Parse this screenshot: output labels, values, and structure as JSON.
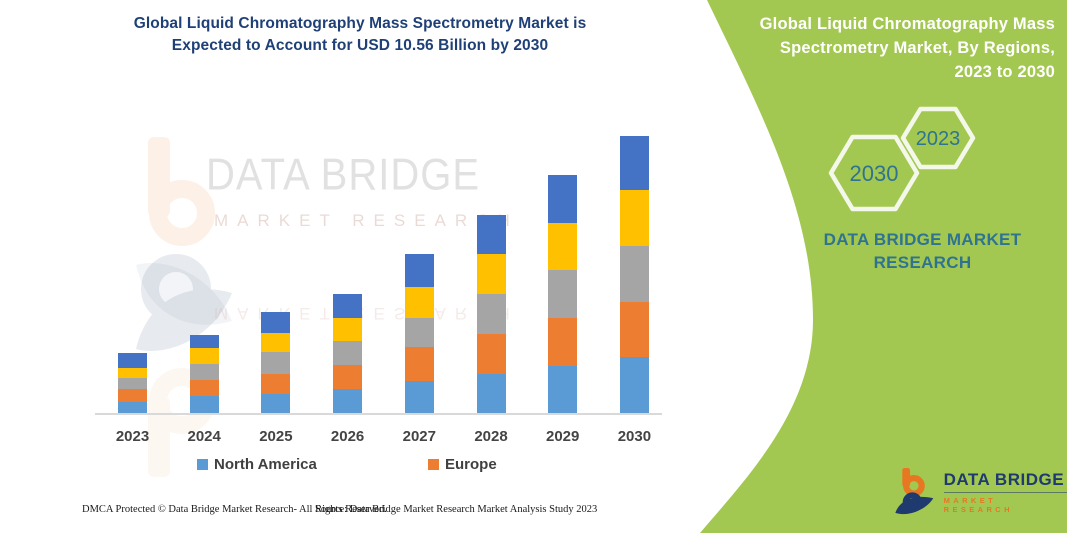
{
  "title": {
    "line1": "Global Liquid Chromatography Mass Spectrometry Market is",
    "line2": "Expected to Account for USD 10.56 Billion by 2030",
    "color": "#1F4077"
  },
  "right_panel": {
    "heading_lines": [
      "Global Liquid Chromatography Mass",
      "Spectrometry Market, By Regions,",
      "2023 to 2030"
    ],
    "hex_large_year": "2030",
    "hex_small_year": "2023",
    "brand_text": "DATA BRIDGE MARKET RESEARCH",
    "background_green": "#A3C851",
    "text_teal": "#2F7391",
    "hex_outline": "#F4F8EA"
  },
  "watermark": {
    "line1": "DATA BRIDGE",
    "line2": "MARKET RESEARCH"
  },
  "logo": {
    "name": "DATA BRIDGE",
    "sub": "MARKET RESEARCH",
    "navy": "#1E3A6E",
    "orange": "#E87722"
  },
  "footer": {
    "left": "DMCA Protected © Data Bridge Market Research- All Rights Reserved.",
    "right": "Source: Data Bridge Market Research Market Analysis Study 2023"
  },
  "chart_data": {
    "type": "bar",
    "stacked": true,
    "unit": "USD Billion (estimated from bar heights; 2030 total = 10.56)",
    "categories": [
      "2023",
      "2024",
      "2025",
      "2026",
      "2027",
      "2028",
      "2029",
      "2030"
    ],
    "series": [
      {
        "name": "North America",
        "color": "#5B9BD5",
        "values": [
          0.41,
          0.64,
          0.73,
          0.9,
          1.22,
          1.49,
          1.78,
          2.13
        ]
      },
      {
        "name": "Europe",
        "color": "#ED7D31",
        "values": [
          0.5,
          0.61,
          0.77,
          0.92,
          1.29,
          1.51,
          1.83,
          2.11
        ]
      },
      {
        "name": "unlabeled (gray)",
        "color": "#A5A5A5",
        "values": [
          0.43,
          0.63,
          0.83,
          0.93,
          1.1,
          1.54,
          1.84,
          2.14
        ]
      },
      {
        "name": "unlabeled (yellow)",
        "color": "#FFC000",
        "values": [
          0.37,
          0.61,
          0.74,
          0.86,
          1.2,
          1.54,
          1.81,
          2.11
        ]
      },
      {
        "name": "unlabeled (dark blue)",
        "color": "#4472C4",
        "values": [
          0.56,
          0.47,
          0.77,
          0.93,
          1.27,
          1.47,
          1.82,
          2.07
        ]
      }
    ],
    "legend": [
      "North America",
      "Europe"
    ],
    "legend_position": "bottom",
    "axes": {
      "y_axis_visible": false,
      "gridlines": false,
      "x_axis_line_color": "#D9D9D9"
    },
    "ylim": [
      0,
      10.56
    ]
  }
}
